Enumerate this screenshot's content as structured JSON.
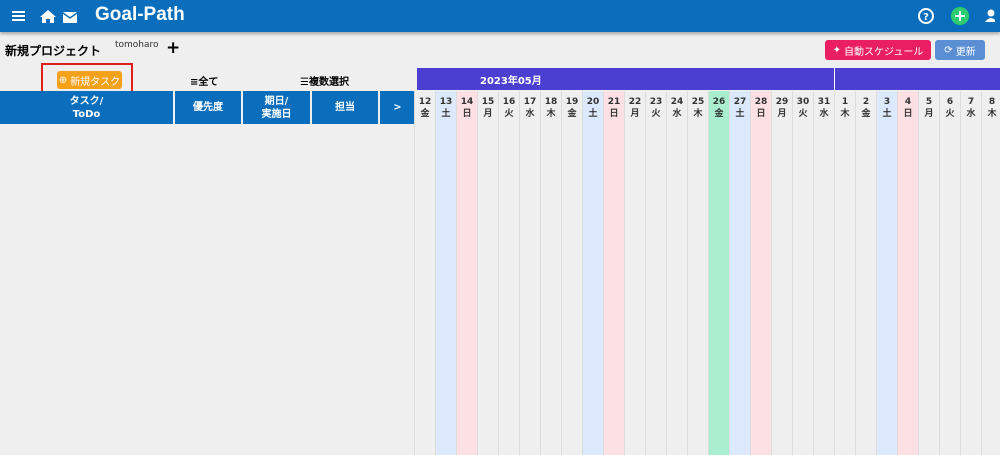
{
  "header": {
    "title": "Goal-Path"
  },
  "project": {
    "name": "新規プロジェクト",
    "user": "tomoharo",
    "add": "+"
  },
  "buttons": {
    "auto_schedule": "自動スケジュール",
    "refresh": "更新"
  },
  "toolbar": {
    "new_task": "新規タスク",
    "filter": "全て",
    "multi_select": "複数選択"
  },
  "table": {
    "columns": [
      [
        "タスク/",
        "ToDo"
      ],
      [
        "優先度"
      ],
      [
        "期日/",
        "実施日"
      ],
      [
        "担当"
      ],
      [
        ">"
      ]
    ]
  },
  "calendar": {
    "month": "2023年05月",
    "days": [
      {
        "date": "12",
        "weekday": "金",
        "color": null
      },
      {
        "date": "13",
        "weekday": "土",
        "color": "#dce8fb"
      },
      {
        "date": "14",
        "weekday": "日",
        "color": "#fde0e3"
      },
      {
        "date": "15",
        "weekday": "月",
        "color": null
      },
      {
        "date": "16",
        "weekday": "火",
        "color": null
      },
      {
        "date": "17",
        "weekday": "水",
        "color": null
      },
      {
        "date": "18",
        "weekday": "木",
        "color": null
      },
      {
        "date": "19",
        "weekday": "金",
        "color": null
      },
      {
        "date": "20",
        "weekday": "土",
        "color": "#dce8fb"
      },
      {
        "date": "21",
        "weekday": "日",
        "color": "#fde0e3"
      },
      {
        "date": "22",
        "weekday": "月",
        "color": null
      },
      {
        "date": "23",
        "weekday": "火",
        "color": null
      },
      {
        "date": "24",
        "weekday": "水",
        "color": null
      },
      {
        "date": "25",
        "weekday": "木",
        "color": null
      },
      {
        "date": "26",
        "weekday": "金",
        "color": "#a9efcf"
      },
      {
        "date": "27",
        "weekday": "土",
        "color": "#dce8fb"
      },
      {
        "date": "28",
        "weekday": "日",
        "color": "#fde0e3"
      },
      {
        "date": "29",
        "weekday": "月",
        "color": null
      },
      {
        "date": "30",
        "weekday": "火",
        "color": null
      },
      {
        "date": "31",
        "weekday": "水",
        "color": null
      },
      {
        "date": "1",
        "weekday": "木",
        "color": null
      },
      {
        "date": "2",
        "weekday": "金",
        "color": null
      },
      {
        "date": "3",
        "weekday": "土",
        "color": "#dce8fb"
      },
      {
        "date": "4",
        "weekday": "日",
        "color": "#fde0e3"
      },
      {
        "date": "5",
        "weekday": "月",
        "color": null
      },
      {
        "date": "6",
        "weekday": "火",
        "color": null
      },
      {
        "date": "7",
        "weekday": "水",
        "color": null
      },
      {
        "date": "8",
        "weekday": "木",
        "color": null
      }
    ]
  }
}
